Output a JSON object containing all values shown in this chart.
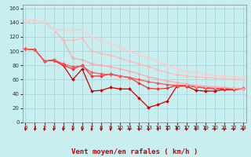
{
  "xlabel": "Vent moyen/en rafales ( km/h )",
  "bg_color": "#c8eef0",
  "grid_color": "#9ed4d8",
  "x_ticks": [
    0,
    1,
    2,
    3,
    4,
    5,
    6,
    7,
    8,
    9,
    10,
    11,
    12,
    13,
    14,
    15,
    16,
    17,
    18,
    19,
    20,
    21,
    22,
    23
  ],
  "ylim": [
    0,
    165
  ],
  "xlim": [
    -0.3,
    23.3
  ],
  "yticks": [
    0,
    20,
    40,
    60,
    80,
    100,
    120,
    140,
    160
  ],
  "series": [
    {
      "x": [
        0,
        1,
        2,
        3,
        4,
        5,
        6,
        7,
        8,
        9,
        10,
        11,
        12,
        13,
        14,
        15,
        16,
        17,
        18,
        19,
        20,
        21,
        22,
        23
      ],
      "y": [
        103,
        102,
        86,
        87,
        80,
        60,
        75,
        44,
        45,
        49,
        47,
        47,
        34,
        21,
        25,
        30,
        51,
        51,
        45,
        44,
        44,
        46,
        46,
        47
      ],
      "color": "#cc0000",
      "lw": 0.9,
      "marker": "D",
      "ms": 2.0
    },
    {
      "x": [
        0,
        1,
        2,
        3,
        4,
        5,
        6,
        7,
        8,
        9,
        10,
        11,
        12,
        13,
        14,
        15,
        16,
        17,
        18,
        19,
        20,
        21,
        22,
        23
      ],
      "y": [
        103,
        102,
        86,
        87,
        80,
        75,
        80,
        65,
        65,
        68,
        65,
        63,
        55,
        48,
        47,
        48,
        52,
        52,
        50,
        48,
        47,
        47,
        47,
        48
      ],
      "color": "#ee3333",
      "lw": 0.9,
      "marker": "D",
      "ms": 2.0
    },
    {
      "x": [
        0,
        1,
        2,
        3,
        4,
        5,
        6,
        7,
        8,
        9,
        10,
        11,
        12,
        13,
        14,
        15,
        16,
        17,
        18,
        19,
        20,
        21,
        22,
        23
      ],
      "y": [
        103,
        102,
        86,
        88,
        82,
        78,
        79,
        70,
        68,
        67,
        65,
        63,
        60,
        57,
        55,
        53,
        52,
        52,
        50,
        49,
        48,
        48,
        47,
        47
      ],
      "color": "#ff5555",
      "lw": 0.9,
      "marker": "D",
      "ms": 2.0
    },
    {
      "x": [
        0,
        1,
        2,
        3,
        4,
        5,
        6,
        7,
        8,
        9,
        10,
        11,
        12,
        13,
        14,
        15,
        16,
        17,
        18,
        19,
        20,
        21,
        22,
        23
      ],
      "y": [
        142,
        143,
        141,
        130,
        115,
        90,
        88,
        82,
        80,
        78,
        75,
        72,
        68,
        64,
        61,
        58,
        56,
        54,
        52,
        51,
        50,
        49,
        48,
        47
      ],
      "color": "#ffaaaa",
      "lw": 0.9,
      "marker": "D",
      "ms": 2.0
    },
    {
      "x": [
        0,
        1,
        2,
        3,
        4,
        5,
        6,
        7,
        8,
        9,
        10,
        11,
        12,
        13,
        14,
        15,
        16,
        17,
        18,
        19,
        20,
        21,
        22,
        23
      ],
      "y": [
        142,
        143,
        141,
        130,
        115,
        115,
        118,
        100,
        97,
        94,
        90,
        86,
        82,
        78,
        74,
        70,
        67,
        65,
        64,
        63,
        62,
        62,
        61,
        60
      ],
      "color": "#ffbbbb",
      "lw": 0.9,
      "marker": "D",
      "ms": 2.0
    },
    {
      "x": [
        0,
        1,
        2,
        3,
        4,
        5,
        6,
        7,
        8,
        9,
        10,
        11,
        12,
        13,
        14,
        15,
        16,
        17,
        18,
        19,
        20,
        21,
        22,
        23
      ],
      "y": [
        142,
        143,
        141,
        130,
        130,
        130,
        130,
        120,
        115,
        110,
        105,
        100,
        95,
        90,
        85,
        80,
        75,
        72,
        70,
        68,
        66,
        65,
        64,
        63
      ],
      "color": "#ffcccc",
      "lw": 0.9,
      "marker": "D",
      "ms": 2.0
    }
  ],
  "font_size": 6.5
}
